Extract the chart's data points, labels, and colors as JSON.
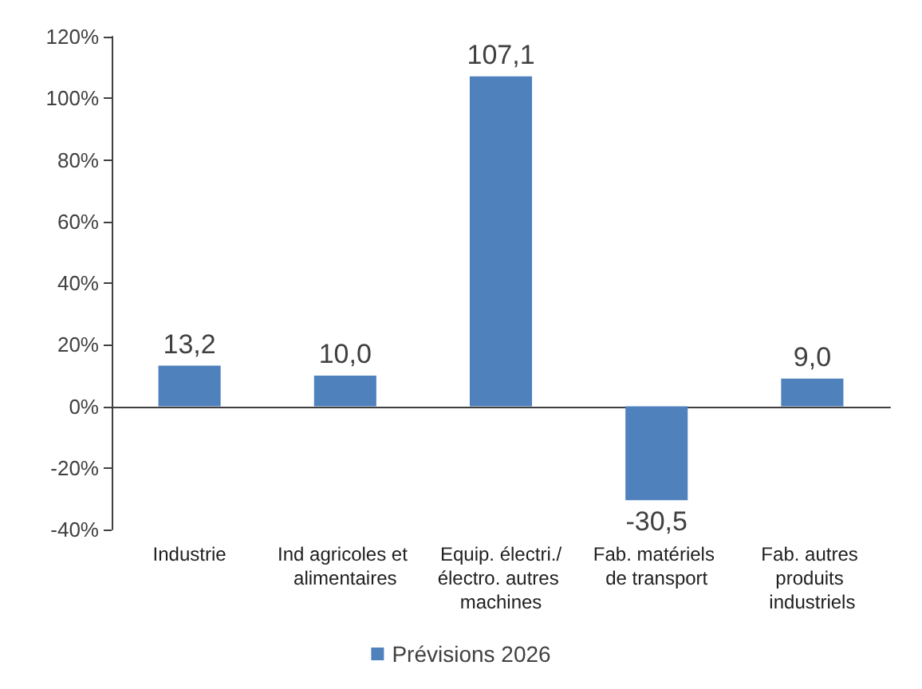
{
  "chart_data": {
    "type": "bar",
    "categories": [
      "Industrie",
      "Ind agricoles et alimentaires",
      "Equip. électri./électro. autres machines",
      "Fab. matériels de transport",
      "Fab. autres produits industriels"
    ],
    "series": [
      {
        "name": "Prévisions 2026",
        "color": "#4f81bd",
        "values": [
          13.2,
          10.0,
          107.1,
          -30.5,
          9.0
        ],
        "value_labels": [
          "13,2",
          "10,0",
          "107,1",
          "-30,5",
          "9,0"
        ]
      }
    ],
    "ylim": [
      -40,
      120
    ],
    "yticks": [
      {
        "value": -40,
        "label": "-40%"
      },
      {
        "value": -20,
        "label": "-20%"
      },
      {
        "value": 0,
        "label": "0%"
      },
      {
        "value": 20,
        "label": "20%"
      },
      {
        "value": 40,
        "label": "40%"
      },
      {
        "value": 60,
        "label": "60%"
      },
      {
        "value": 80,
        "label": "80%"
      },
      {
        "value": 100,
        "label": "100%"
      },
      {
        "value": 120,
        "label": "120%"
      }
    ],
    "legend": "bottom"
  }
}
